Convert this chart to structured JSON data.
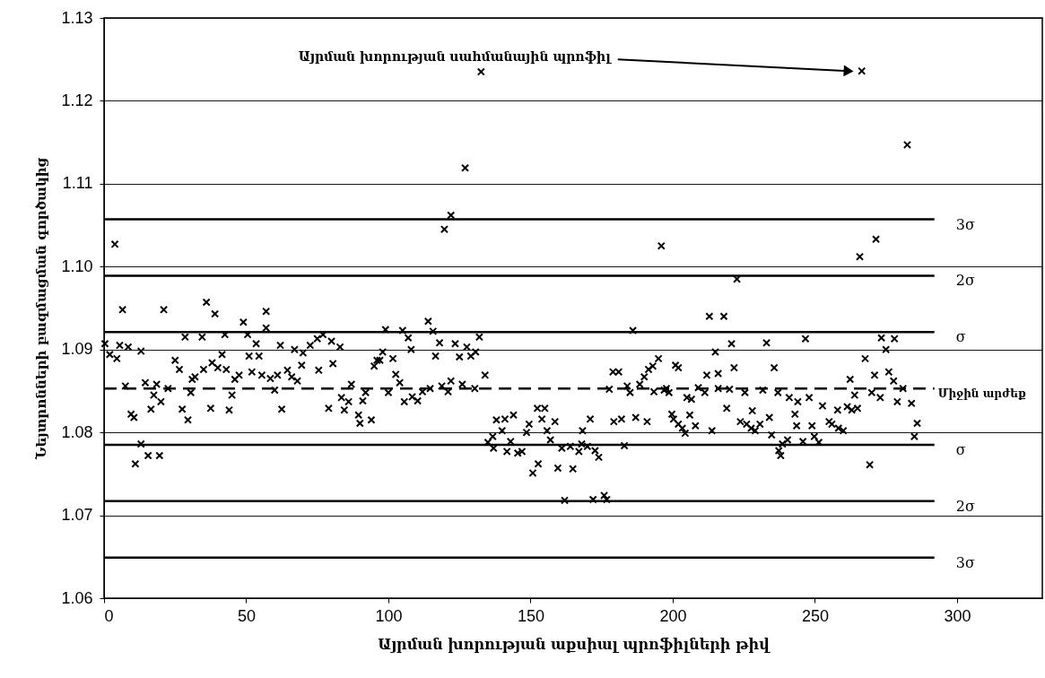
{
  "chart_data": {
    "type": "scatter",
    "xlabel": "Այրման խորության աքսիալ պրոֆիլների թիվ",
    "ylabel": "Նեյտրոնների բազմացման գործակից",
    "xlim": [
      0,
      330
    ],
    "xticks": [
      0,
      50,
      100,
      150,
      200,
      250,
      300
    ],
    "ylim": [
      1.06,
      1.13
    ],
    "yticks": [
      1.06,
      1.07,
      1.08,
      1.09,
      {
        "value": 1.1,
        "label": "1.10"
      },
      1.11,
      1.12,
      1.13
    ],
    "grid": "y",
    "marker": "cross",
    "x": [
      6.5,
      21,
      36,
      39,
      57,
      49,
      57,
      28.5,
      34.5,
      42.5,
      50.5,
      77,
      0.3,
      5.5,
      8.5,
      13,
      2,
      4.5,
      53.5,
      62,
      67,
      72.5,
      75,
      80,
      83,
      70,
      51,
      54.5,
      41.5,
      25,
      26.5,
      38,
      40,
      43,
      35,
      32,
      31,
      47.5,
      46,
      52,
      55.5,
      58.5,
      61,
      64.5,
      66,
      68,
      69.5,
      75.5,
      80.5,
      95,
      97,
      7.5,
      14.5,
      18.5,
      17.5,
      20,
      22.5,
      30.5,
      45,
      60,
      87,
      92,
      83.5,
      86,
      91,
      9.5,
      10.5,
      16.5,
      27.5,
      29.5,
      37.5,
      44,
      62.5,
      79,
      84.5,
      89.5,
      94,
      90,
      13,
      11,
      15.5,
      19.5,
      3.8,
      132.6,
      127,
      122,
      119.7,
      266.5,
      282.5,
      196,
      271.5,
      265.8,
      222.6,
      99,
      105,
      107,
      114,
      115.7,
      118,
      116.6,
      108,
      123.5,
      127.6,
      125,
      129,
      130.7,
      132,
      186,
      98,
      96,
      101.6,
      102.6,
      104,
      100,
      105.6,
      108.4,
      110.3,
      112,
      114.7,
      118.8,
      121,
      122,
      126,
      130.4,
      134,
      179,
      181,
      177.7,
      184,
      185,
      188.4,
      190,
      191.5,
      193,
      195,
      193.4,
      197,
      152.4,
      155,
      144,
      138,
      141,
      154,
      158.6,
      171,
      149.5,
      179.3,
      182,
      187,
      191,
      140,
      136.7,
      148.6,
      155.8,
      168.3,
      143,
      135,
      137,
      141.7,
      145.5,
      147,
      157,
      161,
      164,
      167,
      168,
      170,
      172.7,
      174,
      183,
      152.7,
      150.8,
      159.6,
      164.9,
      162,
      172,
      175.9,
      176.8,
      212.9,
      218,
      220.7,
      233,
      246.7,
      273.4,
      278,
      275,
      215,
      267.7,
      201,
      202,
      221.6,
      235.7,
      212,
      216,
      271,
      276,
      262.4,
      277.7,
      281,
      197.8,
      198.7,
      209,
      211.3,
      216,
      220,
      205,
      206.6,
      225.4,
      231.7,
      237,
      241,
      244,
      248,
      252.7,
      264,
      270,
      273,
      279,
      284,
      219,
      258,
      261.4,
      263,
      265,
      199.7,
      200.3,
      206,
      228,
      234,
      243,
      202,
      203.4,
      204.4,
      208,
      213.8,
      223.8,
      226,
      227.6,
      229,
      230.7,
      243.6,
      249,
      255,
      256,
      258.3,
      260,
      234.8,
      240.4,
      245.8,
      249.8,
      251.4,
      238.6,
      237.3,
      238,
      285,
      286,
      269.3
    ],
    "series": [
      {
        "color": "#000000",
        "values": [
          1.0948,
          1.0948,
          1.0957,
          1.0943,
          1.0946,
          1.0933,
          1.0926,
          1.0915,
          1.0915,
          1.0918,
          1.0918,
          1.0918,
          1.0907,
          1.0905,
          1.0903,
          1.0898,
          1.0894,
          1.0889,
          1.0907,
          1.0905,
          1.09,
          1.0905,
          1.0913,
          1.091,
          1.0903,
          1.0896,
          1.0892,
          1.0892,
          1.0894,
          1.0887,
          1.0876,
          1.0884,
          1.0878,
          1.0876,
          1.0876,
          1.0867,
          1.0864,
          1.0869,
          1.0864,
          1.0873,
          1.0869,
          1.0865,
          1.0869,
          1.0875,
          1.0867,
          1.0862,
          1.0881,
          1.0875,
          1.0883,
          1.088,
          1.0887,
          1.0856,
          1.086,
          1.0858,
          1.0845,
          1.0837,
          1.0853,
          1.0848,
          1.0845,
          1.0851,
          1.0858,
          1.0848,
          1.0842,
          1.0837,
          1.0838,
          1.0822,
          1.0818,
          1.0828,
          1.0828,
          1.0815,
          1.0829,
          1.0827,
          1.0828,
          1.0829,
          1.0827,
          1.0821,
          1.0815,
          1.0811,
          1.0786,
          1.0762,
          1.0772,
          1.0772,
          1.1027,
          1.1235,
          1.1119,
          1.1062,
          1.1045,
          1.1236,
          1.1147,
          1.1025,
          1.1033,
          1.1012,
          1.0985,
          1.0924,
          1.0923,
          1.0914,
          1.0934,
          1.0922,
          1.0908,
          1.0892,
          1.09,
          1.0907,
          1.0903,
          1.0891,
          1.0892,
          1.0897,
          1.0915,
          1.0923,
          1.0897,
          1.0887,
          1.0889,
          1.087,
          1.086,
          1.0848,
          1.0837,
          1.0843,
          1.0838,
          1.0849,
          1.0853,
          1.0856,
          1.0849,
          1.0862,
          1.0858,
          1.0853,
          1.0869,
          1.0873,
          1.0873,
          1.0852,
          1.0856,
          1.0848,
          1.0858,
          1.0867,
          1.0876,
          1.088,
          1.0889,
          1.0849,
          1.0851,
          1.0829,
          1.0829,
          1.0821,
          1.0815,
          1.0816,
          1.0816,
          1.0813,
          1.0816,
          1.081,
          1.0813,
          1.0816,
          1.0818,
          1.0813,
          1.0802,
          1.0795,
          1.08,
          1.0802,
          1.0802,
          1.0789,
          1.0788,
          1.0781,
          1.0777,
          1.0775,
          1.0777,
          1.0791,
          1.0781,
          1.0783,
          1.0777,
          1.0786,
          1.0783,
          1.0778,
          1.077,
          1.0784,
          1.0762,
          1.0751,
          1.0757,
          1.0756,
          1.0718,
          1.0719,
          1.0724,
          1.0719,
          1.094,
          1.094,
          1.0907,
          1.0908,
          1.0913,
          1.0914,
          1.0913,
          1.09,
          1.0897,
          1.0889,
          1.0881,
          1.0878,
          1.0878,
          1.0878,
          1.0869,
          1.0871,
          1.0869,
          1.0873,
          1.0864,
          1.0862,
          1.0853,
          1.0853,
          1.0848,
          1.0854,
          1.0848,
          1.0853,
          1.0852,
          1.0842,
          1.084,
          1.0848,
          1.0851,
          1.0848,
          1.0842,
          1.0837,
          1.0842,
          1.0832,
          1.0845,
          1.0848,
          1.0842,
          1.0837,
          1.0835,
          1.0829,
          1.0827,
          1.0831,
          1.0827,
          1.0829,
          1.0822,
          1.0816,
          1.0821,
          1.0826,
          1.0818,
          1.0822,
          1.081,
          1.0805,
          1.0799,
          1.0808,
          1.0802,
          1.0813,
          1.081,
          1.0805,
          1.0802,
          1.081,
          1.0808,
          1.0808,
          1.0813,
          1.081,
          1.0805,
          1.0802,
          1.0797,
          1.0791,
          1.0789,
          1.0795,
          1.0788,
          1.0786,
          1.0778,
          1.0772,
          1.0795,
          1.0811,
          1.0761
        ]
      }
    ],
    "ref_lines": [
      {
        "axis": "y",
        "value": 1.1057,
        "label": "3σ",
        "color": "#000000",
        "line_style": "solid"
      },
      {
        "axis": "y",
        "value": 1.0989,
        "label": "2σ",
        "color": "#000000",
        "line_style": "solid"
      },
      {
        "axis": "y",
        "value": 1.0921,
        "label": "σ",
        "color": "#000000",
        "line_style": "solid"
      },
      {
        "axis": "y",
        "value": 1.0853,
        "label": "Միջին արժեք",
        "color": "#000000",
        "line_style": "dashed"
      },
      {
        "axis": "y",
        "value": 1.0785,
        "label": "σ",
        "color": "#000000",
        "line_style": "solid"
      },
      {
        "axis": "y",
        "value": 1.0717,
        "label": "2σ",
        "color": "#000000",
        "line_style": "solid"
      },
      {
        "axis": "y",
        "value": 1.0649,
        "label": "3σ",
        "color": "#000000",
        "line_style": "solid"
      }
    ],
    "annotations": [
      "Այրման խորության սահմանային պրոֆիլ"
    ]
  }
}
